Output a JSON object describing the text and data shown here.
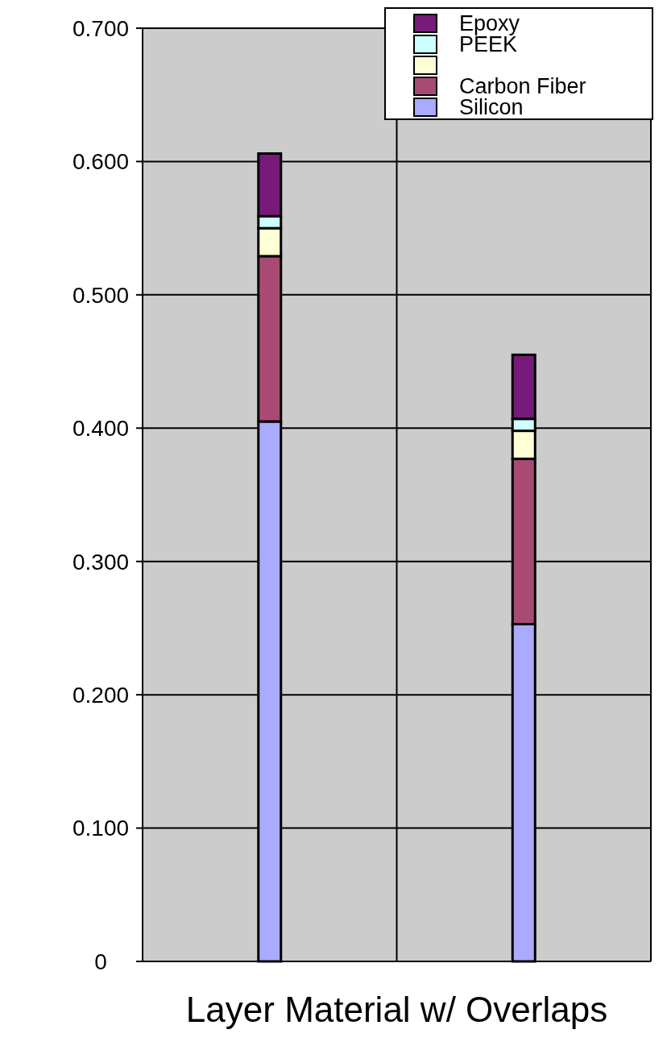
{
  "chart_data": {
    "type": "bar",
    "stacked": true,
    "xlabel": "Layer Material w/ Overlaps",
    "categories": [
      null,
      null
    ],
    "series": [
      {
        "name": "Silicon",
        "color": "#aaaaff",
        "values": [
          0.405,
          0.253
        ]
      },
      {
        "name": "Carbon Fiber",
        "color": "#a94a74",
        "values": [
          0.124,
          0.124
        ]
      },
      {
        "color": "#ffffd6",
        "values": [
          0.021,
          0.021
        ]
      },
      {
        "name": "PEEK",
        "color": "#ccffff",
        "values": [
          0.009,
          0.009
        ]
      },
      {
        "name": "Epoxy",
        "color": "#771a7a",
        "values": [
          0.047,
          0.048
        ]
      }
    ],
    "ylim": [
      0,
      0.7
    ],
    "yticks": [
      0,
      {
        "value": 0.1,
        "label": "0.100"
      },
      {
        "value": 0.2,
        "label": "0.200"
      },
      {
        "value": 0.3,
        "label": "0.300"
      },
      {
        "value": 0.4,
        "label": "0.400"
      },
      {
        "value": 0.5,
        "label": "0.500"
      },
      {
        "value": 0.6,
        "label": "0.600"
      },
      {
        "value": 0.7,
        "label": "0.700"
      }
    ],
    "grid": true,
    "legend": "top right"
  }
}
